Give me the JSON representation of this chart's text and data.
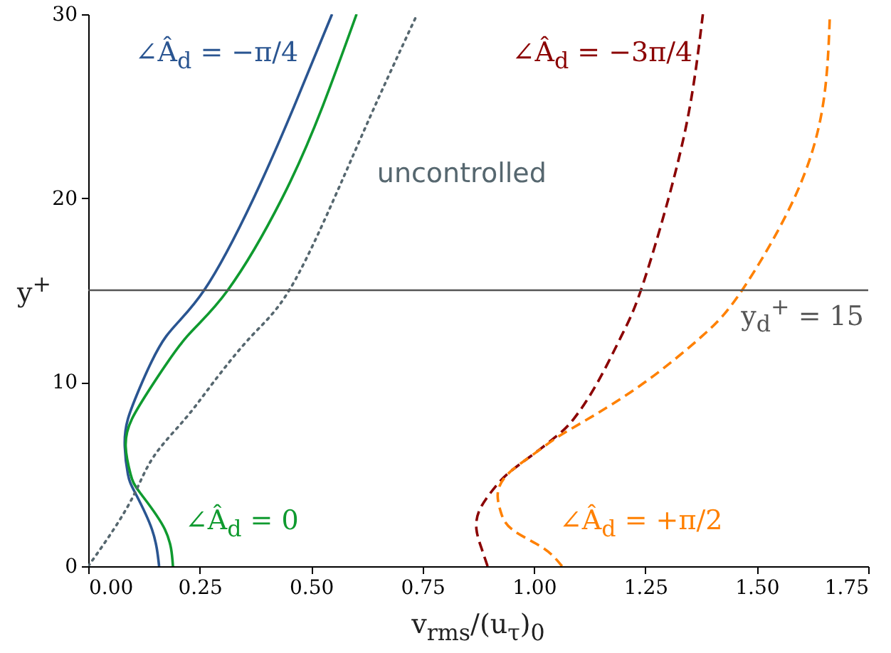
{
  "chart_data": {
    "type": "line",
    "xlabel": "v$_{rms}$/(u$_{τ}$)$_{0}$",
    "ylabel": "y$^{+}$",
    "xlim": [
      0,
      1.75
    ],
    "ylim": [
      0,
      30
    ],
    "xticks": [
      {
        "value": 0,
        "label": "0.00"
      },
      {
        "value": 0.25,
        "label": "0.25"
      },
      {
        "value": 0.5,
        "label": "0.50"
      },
      {
        "value": 0.75,
        "label": "0.75"
      },
      {
        "value": 1,
        "label": "1.00"
      },
      {
        "value": 1.25,
        "label": "1.25"
      },
      {
        "value": 1.5,
        "label": "1.50"
      },
      {
        "value": 1.75,
        "label": "1.75"
      }
    ],
    "yticks": [
      0,
      10,
      20,
      30
    ],
    "grid": false,
    "marker": "none",
    "ref_lines": [
      {
        "axis": "y",
        "value": 15,
        "label": "y$_{d}$$^{+}$ = 15",
        "color": "#555555"
      }
    ],
    "series": [
      {
        "name": "∠Â$_{d}$ = −π/4",
        "color": "#2a5591",
        "line_style": "solid",
        "x": [
          0.159,
          0.143,
          0.105,
          0.089,
          0.082,
          0.089,
          0.121,
          0.175,
          0.26,
          0.371,
          0.462,
          0.547
        ],
        "values": [
          0,
          2,
          4,
          5,
          6.5,
          8,
          10,
          12.5,
          15,
          20,
          25,
          30
        ]
      },
      {
        "name": "∠Â$_{d}$ = 0",
        "color": "#0f9a2f",
        "line_style": "solid",
        "x": [
          0.19,
          0.172,
          0.116,
          0.095,
          0.084,
          0.098,
          0.148,
          0.222,
          0.313,
          0.435,
          0.526,
          0.602
        ],
        "values": [
          0,
          2,
          4,
          5,
          6.5,
          8,
          10,
          12.5,
          15,
          20,
          25,
          30
        ]
      },
      {
        "name": "uncontrolled",
        "color": "#56676f",
        "line_style": "dotted",
        "x": [
          0.0,
          0.057,
          0.105,
          0.148,
          0.217,
          0.281,
          0.366,
          0.451,
          0.552,
          0.643,
          0.738
        ],
        "values": [
          0,
          2,
          4,
          6,
          8,
          10,
          12.5,
          15,
          20,
          25,
          30
        ]
      },
      {
        "name": "∠Â$_{d}$ = −3π/4",
        "color": "#8b0000",
        "line_style": "dashed",
        "x": [
          0.896,
          0.882,
          0.871,
          0.877,
          0.903,
          0.94,
          0.994,
          1.047,
          1.089,
          1.143,
          1.196,
          1.24,
          1.302,
          1.35,
          1.379
        ],
        "values": [
          0,
          1,
          2,
          3,
          4,
          5,
          6,
          7,
          8,
          10,
          12.5,
          15,
          20,
          25,
          30
        ]
      },
      {
        "name": "∠Â$_{d}$ = +π/2",
        "color": "#ff8000",
        "line_style": "dashed",
        "x": [
          1.063,
          1.02,
          0.951,
          0.925,
          0.919,
          0.941,
          0.994,
          1.052,
          1.121,
          1.249,
          1.377,
          1.467,
          1.584,
          1.648,
          1.664
        ],
        "values": [
          0,
          1,
          2,
          3,
          4,
          5,
          6,
          7,
          8,
          10,
          12.5,
          15,
          20,
          25,
          30
        ]
      }
    ]
  }
}
